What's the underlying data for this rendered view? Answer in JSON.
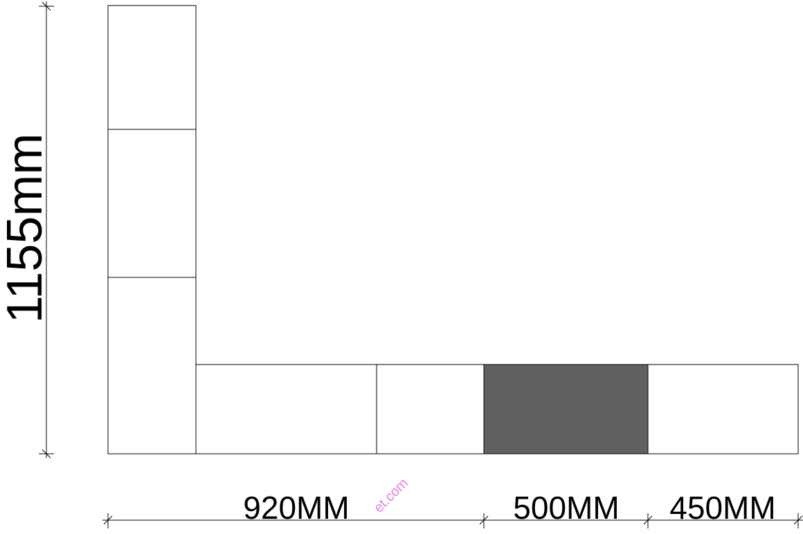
{
  "dimensions": {
    "height_label": "1155mm",
    "width_labels": [
      "920MM",
      "500MM",
      "450MM"
    ]
  },
  "highlighted_cabinet": {
    "color": "#616161"
  },
  "watermark": {
    "text": "et.com"
  }
}
